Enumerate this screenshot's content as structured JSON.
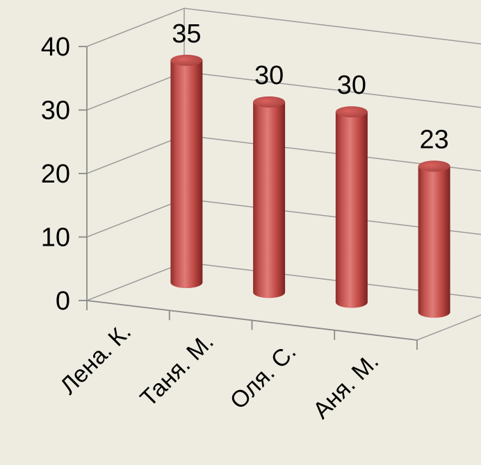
{
  "chart_data": {
    "type": "bar",
    "style": "3d-cylinder",
    "categories": [
      "Лена. К.",
      "Таня. М.",
      "Оля. С.",
      "Аня. М."
    ],
    "values": [
      35,
      30,
      30,
      23
    ],
    "ylim": [
      0,
      40
    ],
    "yticks": [
      0,
      10,
      20,
      30,
      40
    ],
    "grid": true,
    "data_labels": true,
    "colors": {
      "bar": "#c0504d",
      "bar_dark": "#7a2320",
      "bar_light": "#e8a6a3",
      "background": "#eeece1"
    }
  }
}
